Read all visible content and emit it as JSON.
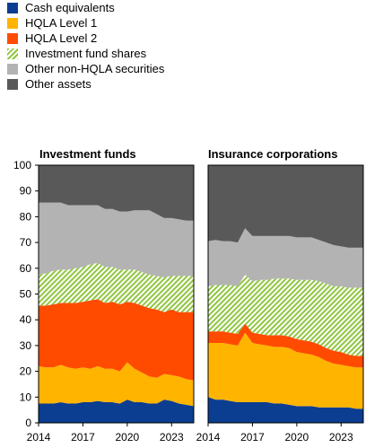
{
  "legend": {
    "items": [
      {
        "label": "Cash equivalents",
        "color": "#0b3d91"
      },
      {
        "label": "HQLA Level 1",
        "color": "#ffb400"
      },
      {
        "label": "HQLA Level 2",
        "color": "#ff4b00"
      },
      {
        "label": "Investment fund shares",
        "color": "#8fc640",
        "pattern": "diagonal-hatch"
      },
      {
        "label": "Other non-HQLA securities",
        "color": "#b3b3b3"
      },
      {
        "label": "Other assets",
        "color": "#595959"
      }
    ]
  },
  "chart_data": [
    {
      "type": "area",
      "stacked": true,
      "title": "Investment funds",
      "x": [
        2014,
        2014.5,
        2015,
        2015.5,
        2016,
        2016.5,
        2017,
        2017.5,
        2018,
        2018.5,
        2019,
        2019.5,
        2020,
        2020.5,
        2021,
        2021.5,
        2022,
        2022.5,
        2023,
        2023.5,
        2024,
        2024.5
      ],
      "x_ticks": [
        "2014",
        "2017",
        "2020",
        "2023"
      ],
      "series": [
        {
          "name": "Cash equivalents",
          "values": [
            7.5,
            7.5,
            7.5,
            8,
            7.5,
            7.5,
            8,
            8,
            8.5,
            8,
            8,
            7.5,
            9,
            8,
            8,
            7.5,
            7.5,
            9,
            8.5,
            7.5,
            7,
            6.5
          ]
        },
        {
          "name": "HQLA Level 1",
          "values": [
            14.5,
            14,
            14,
            14.5,
            14,
            13.5,
            13.5,
            13,
            13.5,
            13,
            13,
            12.5,
            14.5,
            13,
            11.5,
            10.5,
            10,
            10,
            10,
            10.5,
            10,
            10
          ]
        },
        {
          "name": "HQLA Level 2",
          "values": [
            23.5,
            24,
            24.5,
            24,
            25,
            25.5,
            25.5,
            26.5,
            26,
            25.5,
            26,
            26,
            23.5,
            25.5,
            26,
            26.5,
            26.5,
            24,
            25.5,
            25,
            26,
            26.5
          ]
        },
        {
          "name": "Investment fund shares",
          "values": [
            12,
            12.5,
            13,
            13,
            13,
            13.5,
            13.5,
            14,
            14,
            14,
            13.5,
            13.5,
            12.5,
            13,
            13,
            13,
            13,
            13.5,
            13,
            14,
            14,
            14
          ]
        },
        {
          "name": "Other non-HQLA securities",
          "values": [
            28,
            27.5,
            26.5,
            26,
            25,
            24.5,
            24,
            23,
            22.5,
            22.5,
            22.5,
            22.5,
            22.5,
            23,
            24,
            25,
            24,
            23,
            22.5,
            22,
            21.5,
            21.5
          ]
        },
        {
          "name": "Other assets",
          "values": [
            14.5,
            14.5,
            14.5,
            14.5,
            15.5,
            15.5,
            15.5,
            15.5,
            15.5,
            17,
            17,
            18,
            18,
            17.5,
            17.5,
            17.5,
            19,
            20.5,
            20.5,
            21,
            21.5,
            21.5
          ]
        }
      ],
      "ylim": [
        0,
        100
      ],
      "y_ticks": [
        0,
        10,
        20,
        30,
        40,
        50,
        60,
        70,
        80,
        90,
        100
      ]
    },
    {
      "type": "area",
      "stacked": true,
      "title": "Insurance corporations",
      "x": [
        2014,
        2014.5,
        2015,
        2015.5,
        2016,
        2016.5,
        2017,
        2017.5,
        2018,
        2018.5,
        2019,
        2019.5,
        2020,
        2020.5,
        2021,
        2021.5,
        2022,
        2022.5,
        2023,
        2023.5,
        2024,
        2024.5
      ],
      "x_ticks": [
        "2014",
        "2017",
        "2020",
        "2023"
      ],
      "series": [
        {
          "name": "Cash equivalents",
          "values": [
            10,
            9,
            9,
            8.5,
            8,
            8,
            8,
            8,
            8,
            7.5,
            7.5,
            7,
            6.5,
            6.5,
            6.5,
            6,
            6,
            6,
            6,
            6,
            5.5,
            5.5
          ]
        },
        {
          "name": "HQLA Level 1",
          "values": [
            21,
            22,
            22,
            22,
            22,
            27,
            23,
            22.5,
            22,
            22,
            22,
            22,
            21,
            20.5,
            20,
            19.5,
            18,
            17,
            16.5,
            16,
            16,
            16
          ]
        },
        {
          "name": "HQLA Level 2",
          "values": [
            4.5,
            4.5,
            4.5,
            4.5,
            4.5,
            3.5,
            4,
            4,
            4,
            4.5,
            4.5,
            4.5,
            5,
            5,
            5,
            5,
            5,
            5,
            5,
            4.5,
            4.5,
            4.5
          ]
        },
        {
          "name": "Investment fund shares",
          "values": [
            17.5,
            18,
            18,
            18.5,
            18.5,
            19,
            20,
            21,
            21.5,
            22,
            22,
            22.5,
            23,
            23.5,
            24,
            24.5,
            25,
            25,
            25.5,
            26,
            26.5,
            26.5
          ]
        },
        {
          "name": "Other non-HQLA securities",
          "values": [
            17.5,
            17.5,
            17,
            17,
            17,
            18,
            17.5,
            17,
            17,
            16.5,
            16.5,
            16.5,
            16.5,
            16.5,
            16.5,
            16,
            16,
            16,
            15.5,
            15.5,
            15.5,
            15.5
          ]
        },
        {
          "name": "Other assets",
          "values": [
            29.5,
            29,
            29.5,
            29.5,
            30,
            24.5,
            27.5,
            27.5,
            27.5,
            27.5,
            27.5,
            27.5,
            28,
            28,
            28,
            29,
            30,
            31,
            31.5,
            32,
            32,
            32
          ]
        }
      ],
      "ylim": [
        0,
        100
      ],
      "y_ticks": [
        0,
        10,
        20,
        30,
        40,
        50,
        60,
        70,
        80,
        90,
        100
      ]
    }
  ]
}
